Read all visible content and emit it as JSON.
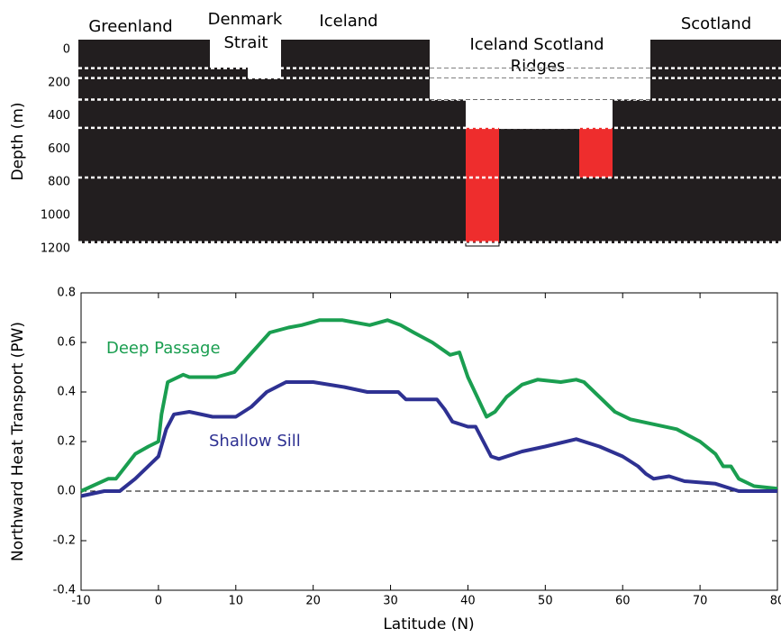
{
  "chart_data": [
    {
      "type": "section",
      "ylabel": "Depth (m)",
      "ylim": [
        0,
        1200
      ],
      "yticks": [
        0,
        200,
        400,
        600,
        800,
        1000,
        1200
      ],
      "labels": [
        "Greenland",
        "Denmark",
        "Strait",
        "Iceland",
        "Iceland Scotland",
        "Ridges",
        "Scotland"
      ],
      "levels": [
        150,
        210,
        340,
        510,
        810,
        1200
      ],
      "bar_color": "#ee2d2d",
      "bars": [
        [
          510,
          1200
        ],
        [
          510,
          810
        ]
      ]
    },
    {
      "type": "line",
      "xlabel": "Latitude (N)",
      "ylabel": "Northward Heat Transport (PW)",
      "xlim": [
        -10,
        80
      ],
      "ylim": [
        -0.4,
        0.8
      ],
      "xticks": [
        -10,
        0,
        10,
        20,
        30,
        40,
        50,
        60,
        70,
        80
      ],
      "yticks": [
        -0.4,
        -0.2,
        {
          "value": 0,
          "label": "0.0"
        },
        0.2,
        0.4,
        0.6,
        0.8
      ],
      "series": [
        {
          "name": "Deep Passage",
          "color": "#1a9e50",
          "x": [
            -10,
            -6.5,
            -5.5,
            -3,
            -1.3,
            0,
            0.4,
            1.2,
            3.2,
            4,
            7.5,
            9.8,
            12.1,
            14.4,
            16.8,
            18.5,
            20.8,
            23.8,
            27.3,
            29.6,
            31.3,
            33,
            35.4,
            37.7,
            38.9,
            40,
            41.2,
            42.4,
            43.5,
            45,
            47,
            49,
            52,
            54,
            55,
            57,
            59,
            61,
            64,
            67,
            70,
            72,
            73,
            74,
            75,
            77,
            80
          ],
          "values": [
            0,
            0.05,
            0.05,
            0.15,
            0.18,
            0.2,
            0.31,
            0.44,
            0.47,
            0.46,
            0.46,
            0.48,
            0.56,
            0.64,
            0.66,
            0.67,
            0.69,
            0.69,
            0.67,
            0.69,
            0.67,
            0.64,
            0.6,
            0.55,
            0.56,
            0.46,
            0.38,
            0.3,
            0.32,
            0.38,
            0.43,
            0.45,
            0.44,
            0.45,
            0.44,
            0.38,
            0.32,
            0.29,
            0.27,
            0.25,
            0.2,
            0.15,
            0.1,
            0.1,
            0.05,
            0.02,
            0.01
          ]
        },
        {
          "name": "Shallow Sill",
          "color": "#2e3192",
          "x": [
            -10,
            -7,
            -5,
            -3,
            0,
            1,
            2,
            4,
            7,
            10,
            12,
            14,
            16.5,
            20,
            24,
            27,
            31,
            32,
            36,
            37,
            38,
            40,
            41,
            42,
            43,
            44,
            47,
            50,
            54,
            57,
            60,
            62,
            63,
            64,
            66,
            68,
            72,
            75,
            80
          ],
          "values": [
            -0.02,
            0,
            0,
            0.05,
            0.14,
            0.25,
            0.31,
            0.32,
            0.3,
            0.3,
            0.34,
            0.4,
            0.44,
            0.44,
            0.42,
            0.4,
            0.4,
            0.37,
            0.37,
            0.33,
            0.28,
            0.26,
            0.26,
            0.2,
            0.14,
            0.13,
            0.16,
            0.18,
            0.21,
            0.18,
            0.14,
            0.1,
            0.07,
            0.05,
            0.06,
            0.04,
            0.03,
            0,
            0
          ]
        }
      ]
    }
  ]
}
